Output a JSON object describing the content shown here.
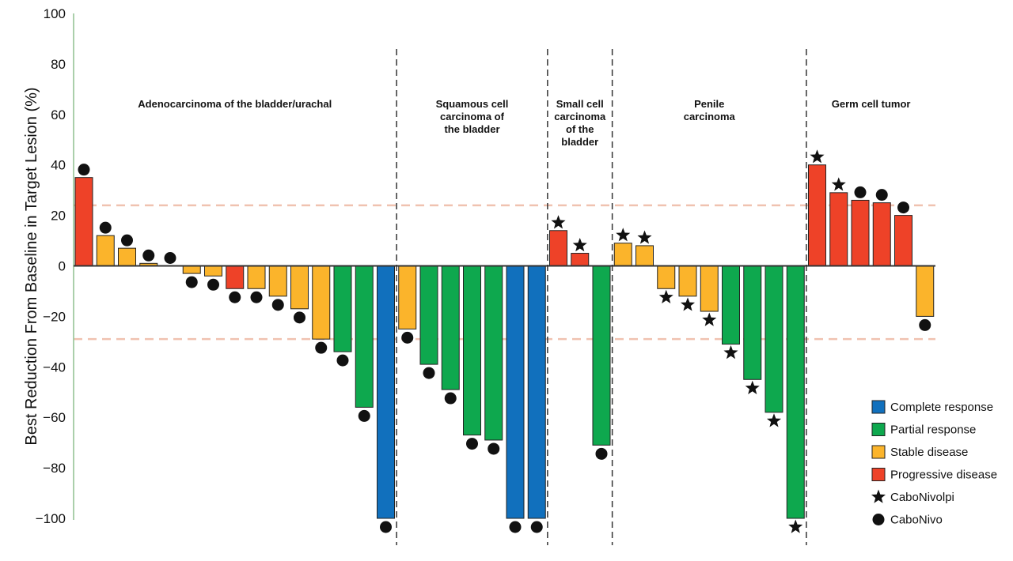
{
  "chart_data": {
    "type": "bar",
    "title": "",
    "xlabel": "",
    "ylabel": "Best Reduction From Baseline in Target Lesion (%)",
    "ylim": [
      -100,
      100
    ],
    "yticks": [
      100,
      80,
      60,
      40,
      20,
      0,
      -20,
      -40,
      -60,
      -80,
      -100
    ],
    "ytick_labels": [
      "100",
      "80",
      "60",
      "40",
      "20",
      "0",
      "−20",
      "−40",
      "−60",
      "−80",
      "−100"
    ],
    "reference_lines": [
      24,
      -29
    ],
    "groups": [
      {
        "label": [
          "Adenocarcinoma of the bladder/urachal"
        ],
        "start": 0,
        "end": 14
      },
      {
        "label": [
          "Squamous cell",
          "carcinoma of",
          "the bladder"
        ],
        "start": 15,
        "end": 21
      },
      {
        "label": [
          "Small cell",
          "carcinoma",
          "of the",
          "bladder"
        ],
        "start": 22,
        "end": 24
      },
      {
        "label": [
          "Penile",
          "carcinoma"
        ],
        "start": 25,
        "end": 33
      },
      {
        "label": [
          "Germ cell tumor"
        ],
        "start": 34,
        "end": 39
      }
    ],
    "response_colors": {
      "CR": "#1170bd",
      "PR": "#0ea84e",
      "SD": "#fbb42b",
      "PD": "#ee4228"
    },
    "bars": [
      {
        "value": 35,
        "response": "PD",
        "regimen": "CaboNivo"
      },
      {
        "value": 12,
        "response": "SD",
        "regimen": "CaboNivo"
      },
      {
        "value": 7,
        "response": "SD",
        "regimen": "CaboNivo"
      },
      {
        "value": 1,
        "response": "SD",
        "regimen": "CaboNivo"
      },
      {
        "value": 0,
        "response": "SD",
        "regimen": "CaboNivo"
      },
      {
        "value": -3,
        "response": "SD",
        "regimen": "CaboNivo"
      },
      {
        "value": -4,
        "response": "SD",
        "regimen": "CaboNivo"
      },
      {
        "value": -9,
        "response": "PD",
        "regimen": "CaboNivo"
      },
      {
        "value": -9,
        "response": "SD",
        "regimen": "CaboNivo"
      },
      {
        "value": -12,
        "response": "SD",
        "regimen": "CaboNivo"
      },
      {
        "value": -17,
        "response": "SD",
        "regimen": "CaboNivo"
      },
      {
        "value": -29,
        "response": "SD",
        "regimen": "CaboNivo"
      },
      {
        "value": -34,
        "response": "PR",
        "regimen": "CaboNivo"
      },
      {
        "value": -56,
        "response": "PR",
        "regimen": "CaboNivo"
      },
      {
        "value": -100,
        "response": "CR",
        "regimen": "CaboNivo"
      },
      {
        "value": -25,
        "response": "SD",
        "regimen": "CaboNivo"
      },
      {
        "value": -39,
        "response": "PR",
        "regimen": "CaboNivo"
      },
      {
        "value": -49,
        "response": "PR",
        "regimen": "CaboNivo"
      },
      {
        "value": -67,
        "response": "PR",
        "regimen": "CaboNivo"
      },
      {
        "value": -69,
        "response": "PR",
        "regimen": "CaboNivo"
      },
      {
        "value": -100,
        "response": "CR",
        "regimen": "CaboNivo"
      },
      {
        "value": -100,
        "response": "CR",
        "regimen": "CaboNivo"
      },
      {
        "value": 14,
        "response": "PD",
        "regimen": "CaboNivolpi"
      },
      {
        "value": 5,
        "response": "PD",
        "regimen": "CaboNivolpi"
      },
      {
        "value": -71,
        "response": "PR",
        "regimen": "CaboNivo"
      },
      {
        "value": 9,
        "response": "SD",
        "regimen": "CaboNivolpi"
      },
      {
        "value": 8,
        "response": "SD",
        "regimen": "CaboNivolpi"
      },
      {
        "value": -9,
        "response": "SD",
        "regimen": "CaboNivolpi"
      },
      {
        "value": -12,
        "response": "SD",
        "regimen": "CaboNivolpi"
      },
      {
        "value": -18,
        "response": "SD",
        "regimen": "CaboNivolpi"
      },
      {
        "value": -31,
        "response": "PR",
        "regimen": "CaboNivolpi"
      },
      {
        "value": -45,
        "response": "PR",
        "regimen": "CaboNivolpi"
      },
      {
        "value": -58,
        "response": "PR",
        "regimen": "CaboNivolpi"
      },
      {
        "value": -100,
        "response": "PR",
        "regimen": "CaboNivolpi"
      },
      {
        "value": 40,
        "response": "PD",
        "regimen": "CaboNivolpi"
      },
      {
        "value": 29,
        "response": "PD",
        "regimen": "CaboNivolpi"
      },
      {
        "value": 26,
        "response": "PD",
        "regimen": "CaboNivo"
      },
      {
        "value": 25,
        "response": "PD",
        "regimen": "CaboNivo"
      },
      {
        "value": 20,
        "response": "PD",
        "regimen": "CaboNivo"
      },
      {
        "value": -20,
        "response": "SD",
        "regimen": "CaboNivo"
      }
    ],
    "legend": {
      "placement": "bottom-right",
      "items": [
        {
          "label": "Complete response",
          "kind": "swatch",
          "color": "#1170bd"
        },
        {
          "label": "Partial response",
          "kind": "swatch",
          "color": "#0ea84e"
        },
        {
          "label": "Stable disease",
          "kind": "swatch",
          "color": "#fbb42b"
        },
        {
          "label": "Progressive disease",
          "kind": "swatch",
          "color": "#ee4228"
        },
        {
          "label": "CaboNivolpi",
          "kind": "star",
          "color": "#111111"
        },
        {
          "label": "CaboNivo",
          "kind": "circle",
          "color": "#111111"
        }
      ]
    }
  },
  "colors": {
    "axis_line": "#8fbf8f",
    "zero_line": "#333333",
    "reference_line": "#f0c2b0",
    "separator": "#333333",
    "bar_outline": "#222222"
  }
}
